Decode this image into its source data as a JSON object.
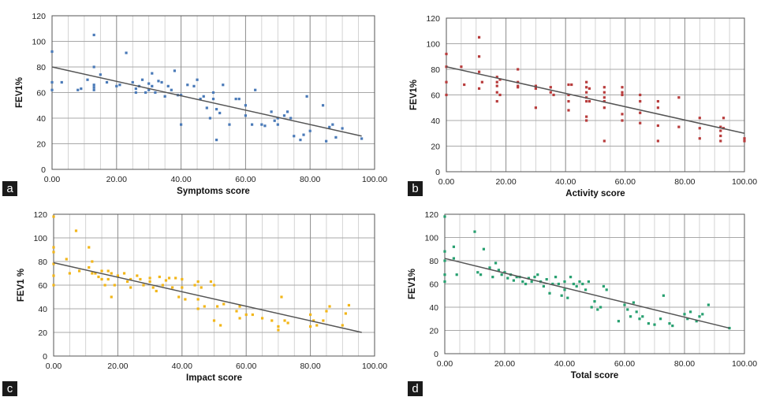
{
  "chart_data": [
    {
      "type": "scatter",
      "panel_label": "a",
      "xlabel": "Symptoms score",
      "ylabel": "FEV1%",
      "xlim": [
        0,
        100
      ],
      "ylim": [
        0,
        120
      ],
      "x_ticks": [
        "0.00",
        "20.00",
        "40.00",
        "60.00",
        "80.00",
        "100.00"
      ],
      "y_ticks": [
        "0",
        "20",
        "40",
        "60",
        "80",
        "100",
        "120"
      ],
      "grid": true,
      "color": "#4a7ab8",
      "trendline": [
        [
          0,
          80
        ],
        [
          96,
          26
        ]
      ],
      "points": [
        [
          0,
          92
        ],
        [
          0,
          68
        ],
        [
          0,
          62
        ],
        [
          3,
          68
        ],
        [
          8,
          62
        ],
        [
          9,
          63
        ],
        [
          11,
          70
        ],
        [
          13,
          105
        ],
        [
          13,
          80
        ],
        [
          13,
          66
        ],
        [
          13,
          62
        ],
        [
          13,
          64
        ],
        [
          15,
          74
        ],
        [
          17,
          68
        ],
        [
          20,
          65
        ],
        [
          21,
          66
        ],
        [
          23,
          91
        ],
        [
          25,
          68
        ],
        [
          26,
          60
        ],
        [
          26,
          63
        ],
        [
          27,
          65
        ],
        [
          28,
          70
        ],
        [
          29,
          60
        ],
        [
          30,
          62
        ],
        [
          30,
          67
        ],
        [
          31,
          75
        ],
        [
          31,
          65
        ],
        [
          32,
          60
        ],
        [
          33,
          69
        ],
        [
          34,
          68
        ],
        [
          35,
          57
        ],
        [
          36,
          65
        ],
        [
          37,
          62
        ],
        [
          38,
          77
        ],
        [
          39,
          58
        ],
        [
          40,
          58
        ],
        [
          40,
          35
        ],
        [
          42,
          66
        ],
        [
          44,
          65
        ],
        [
          45,
          70
        ],
        [
          46,
          55
        ],
        [
          47,
          57
        ],
        [
          48,
          48
        ],
        [
          49,
          40
        ],
        [
          50,
          55
        ],
        [
          50,
          60
        ],
        [
          51,
          47
        ],
        [
          51,
          23
        ],
        [
          52,
          44
        ],
        [
          53,
          66
        ],
        [
          55,
          35
        ],
        [
          57,
          55
        ],
        [
          58,
          55
        ],
        [
          60,
          42
        ],
        [
          60,
          50
        ],
        [
          62,
          35
        ],
        [
          63,
          62
        ],
        [
          65,
          35
        ],
        [
          66,
          34
        ],
        [
          68,
          45
        ],
        [
          69,
          38
        ],
        [
          70,
          40
        ],
        [
          70,
          35
        ],
        [
          72,
          42
        ],
        [
          73,
          45
        ],
        [
          74,
          40
        ],
        [
          75,
          26
        ],
        [
          77,
          23
        ],
        [
          78,
          27
        ],
        [
          79,
          57
        ],
        [
          80,
          30
        ],
        [
          84,
          50
        ],
        [
          85,
          22
        ],
        [
          86,
          33
        ],
        [
          87,
          35
        ],
        [
          88,
          25
        ],
        [
          90,
          32
        ],
        [
          96,
          24
        ]
      ]
    },
    {
      "type": "scatter",
      "panel_label": "b",
      "xlabel": "Activity score",
      "ylabel": "FEV1%",
      "xlim": [
        0,
        100
      ],
      "ylim": [
        0,
        120
      ],
      "x_ticks": [
        "0.00",
        "20.00",
        "40.00",
        "60.00",
        "80.00",
        "100.00"
      ],
      "y_ticks": [
        "0",
        "20",
        "40",
        "60",
        "80",
        "100",
        "120"
      ],
      "grid": true,
      "color": "#b83c3c",
      "trendline": [
        [
          0,
          82
        ],
        [
          100,
          30
        ]
      ],
      "points": [
        [
          0,
          92
        ],
        [
          0,
          82
        ],
        [
          0,
          70
        ],
        [
          0,
          60
        ],
        [
          5,
          82
        ],
        [
          6,
          68
        ],
        [
          11,
          105
        ],
        [
          11,
          90
        ],
        [
          11,
          78
        ],
        [
          11,
          65
        ],
        [
          12,
          70
        ],
        [
          17,
          74
        ],
        [
          17,
          70
        ],
        [
          17,
          67
        ],
        [
          17,
          62
        ],
        [
          17,
          55
        ],
        [
          18,
          72
        ],
        [
          18,
          60
        ],
        [
          24,
          80
        ],
        [
          24,
          70
        ],
        [
          24,
          67
        ],
        [
          24,
          66
        ],
        [
          30,
          67
        ],
        [
          30,
          65
        ],
        [
          30,
          50
        ],
        [
          35,
          66
        ],
        [
          35,
          62
        ],
        [
          36,
          60
        ],
        [
          41,
          68
        ],
        [
          41,
          60
        ],
        [
          41,
          55
        ],
        [
          41,
          48
        ],
        [
          42,
          68
        ],
        [
          47,
          70
        ],
        [
          47,
          66
        ],
        [
          47,
          62
        ],
        [
          47,
          58
        ],
        [
          47,
          55
        ],
        [
          47,
          43
        ],
        [
          47,
          40
        ],
        [
          48,
          65
        ],
        [
          48,
          55
        ],
        [
          53,
          66
        ],
        [
          53,
          62
        ],
        [
          53,
          58
        ],
        [
          53,
          55
        ],
        [
          53,
          50
        ],
        [
          53,
          24
        ],
        [
          59,
          66
        ],
        [
          59,
          62
        ],
        [
          59,
          60
        ],
        [
          59,
          45
        ],
        [
          59,
          40
        ],
        [
          65,
          60
        ],
        [
          65,
          55
        ],
        [
          65,
          46
        ],
        [
          65,
          38
        ],
        [
          71,
          55
        ],
        [
          71,
          50
        ],
        [
          71,
          36
        ],
        [
          71,
          24
        ],
        [
          78,
          58
        ],
        [
          78,
          35
        ],
        [
          85,
          42
        ],
        [
          85,
          34
        ],
        [
          85,
          26
        ],
        [
          92,
          35
        ],
        [
          92,
          32
        ],
        [
          92,
          28
        ],
        [
          92,
          24
        ],
        [
          93,
          42
        ],
        [
          93,
          34
        ],
        [
          100,
          26
        ],
        [
          100,
          24
        ]
      ]
    },
    {
      "type": "scatter",
      "panel_label": "c",
      "xlabel": "Impact score",
      "ylabel": "FEV1 %",
      "xlim": [
        0,
        100
      ],
      "ylim": [
        0,
        120
      ],
      "x_ticks": [
        "0.00",
        "20.00",
        "40.00",
        "60.00",
        "80.00",
        "100.00"
      ],
      "y_ticks": [
        "0",
        "20",
        "40",
        "60",
        "80",
        "100",
        "120"
      ],
      "grid": true,
      "color": "#f2b619",
      "trendline": [
        [
          0,
          79
        ],
        [
          96,
          20
        ]
      ],
      "points": [
        [
          0,
          118
        ],
        [
          0,
          92
        ],
        [
          0,
          88
        ],
        [
          0,
          78
        ],
        [
          0,
          60
        ],
        [
          0,
          68
        ],
        [
          4,
          82
        ],
        [
          5,
          70
        ],
        [
          7,
          106
        ],
        [
          8,
          72
        ],
        [
          11,
          92
        ],
        [
          11,
          75
        ],
        [
          12,
          70
        ],
        [
          12,
          80
        ],
        [
          13,
          70
        ],
        [
          14,
          67
        ],
        [
          15,
          72
        ],
        [
          15,
          65
        ],
        [
          16,
          60
        ],
        [
          17,
          72
        ],
        [
          17,
          65
        ],
        [
          18,
          50
        ],
        [
          18,
          70
        ],
        [
          19,
          60
        ],
        [
          20,
          68
        ],
        [
          22,
          70
        ],
        [
          23,
          63
        ],
        [
          24,
          65
        ],
        [
          24,
          58
        ],
        [
          26,
          68
        ],
        [
          27,
          65
        ],
        [
          28,
          60
        ],
        [
          30,
          66
        ],
        [
          30,
          63
        ],
        [
          31,
          58
        ],
        [
          32,
          55
        ],
        [
          33,
          67
        ],
        [
          34,
          60
        ],
        [
          35,
          64
        ],
        [
          36,
          66
        ],
        [
          37,
          58
        ],
        [
          38,
          66
        ],
        [
          39,
          50
        ],
        [
          40,
          65
        ],
        [
          40,
          58
        ],
        [
          41,
          48
        ],
        [
          44,
          60
        ],
        [
          45,
          63
        ],
        [
          45,
          48
        ],
        [
          45,
          40
        ],
        [
          46,
          58
        ],
        [
          47,
          42
        ],
        [
          49,
          63
        ],
        [
          50,
          60
        ],
        [
          50,
          30
        ],
        [
          51,
          42
        ],
        [
          52,
          26
        ],
        [
          53,
          44
        ],
        [
          57,
          38
        ],
        [
          58,
          42
        ],
        [
          58,
          32
        ],
        [
          60,
          35
        ],
        [
          62,
          35
        ],
        [
          65,
          32
        ],
        [
          68,
          30
        ],
        [
          70,
          25
        ],
        [
          70,
          22
        ],
        [
          71,
          50
        ],
        [
          72,
          30
        ],
        [
          73,
          28
        ],
        [
          80,
          35
        ],
        [
          80,
          25
        ],
        [
          81,
          30
        ],
        [
          82,
          26
        ],
        [
          84,
          30
        ],
        [
          85,
          38
        ],
        [
          86,
          42
        ],
        [
          90,
          26
        ],
        [
          91,
          36
        ],
        [
          92,
          43
        ]
      ]
    },
    {
      "type": "scatter",
      "panel_label": "d",
      "xlabel": "Total score",
      "ylabel": "FEV1%",
      "xlim": [
        0,
        100
      ],
      "ylim": [
        0,
        120
      ],
      "x_ticks": [
        "0.00",
        "20.00",
        "40.00",
        "60.00",
        "80.00",
        "100.00"
      ],
      "y_ticks": [
        "0",
        "20",
        "40",
        "60",
        "80",
        "100",
        "120"
      ],
      "grid": true,
      "color": "#27a070",
      "trendline": [
        [
          0,
          82
        ],
        [
          95,
          22
        ]
      ],
      "points": [
        [
          0,
          118
        ],
        [
          0,
          88
        ],
        [
          0,
          80
        ],
        [
          0,
          68
        ],
        [
          0,
          62
        ],
        [
          3,
          92
        ],
        [
          3,
          82
        ],
        [
          4,
          68
        ],
        [
          10,
          105
        ],
        [
          11,
          70
        ],
        [
          12,
          68
        ],
        [
          13,
          90
        ],
        [
          15,
          74
        ],
        [
          16,
          66
        ],
        [
          17,
          78
        ],
        [
          18,
          72
        ],
        [
          19,
          68
        ],
        [
          20,
          70
        ],
        [
          21,
          65
        ],
        [
          22,
          68
        ],
        [
          23,
          63
        ],
        [
          24,
          66
        ],
        [
          25,
          66
        ],
        [
          26,
          62
        ],
        [
          27,
          60
        ],
        [
          28,
          65
        ],
        [
          29,
          62
        ],
        [
          30,
          66
        ],
        [
          31,
          68
        ],
        [
          32,
          62
        ],
        [
          33,
          58
        ],
        [
          34,
          64
        ],
        [
          35,
          52
        ],
        [
          36,
          60
        ],
        [
          37,
          66
        ],
        [
          38,
          60
        ],
        [
          39,
          50
        ],
        [
          40,
          62
        ],
        [
          40,
          55
        ],
        [
          41,
          48
        ],
        [
          42,
          66
        ],
        [
          43,
          60
        ],
        [
          44,
          58
        ],
        [
          45,
          62
        ],
        [
          46,
          60
        ],
        [
          47,
          55
        ],
        [
          48,
          62
        ],
        [
          49,
          40
        ],
        [
          50,
          45
        ],
        [
          51,
          38
        ],
        [
          52,
          40
        ],
        [
          53,
          58
        ],
        [
          54,
          55
        ],
        [
          58,
          28
        ],
        [
          60,
          42
        ],
        [
          61,
          38
        ],
        [
          62,
          32
        ],
        [
          63,
          44
        ],
        [
          64,
          36
        ],
        [
          65,
          30
        ],
        [
          66,
          32
        ],
        [
          68,
          26
        ],
        [
          70,
          25
        ],
        [
          72,
          30
        ],
        [
          73,
          50
        ],
        [
          75,
          26
        ],
        [
          76,
          24
        ],
        [
          80,
          34
        ],
        [
          81,
          30
        ],
        [
          82,
          36
        ],
        [
          84,
          28
        ],
        [
          85,
          32
        ],
        [
          86,
          34
        ],
        [
          88,
          42
        ],
        [
          95,
          22
        ]
      ]
    }
  ]
}
